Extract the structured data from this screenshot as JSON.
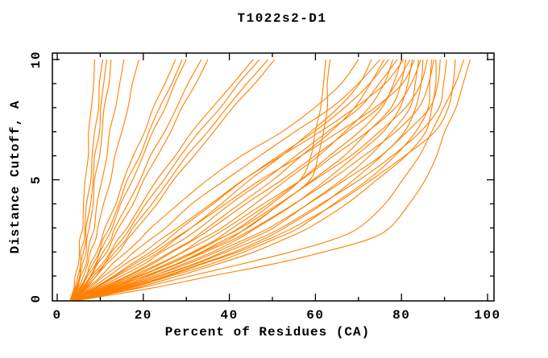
{
  "colors": {
    "curve": "#ff8000",
    "axis": "#000000",
    "background": "#ffffff"
  },
  "chart_data": {
    "type": "line",
    "title": "T1022s2-D1",
    "xlabel": "Percent of Residues (CA)",
    "ylabel": "Distance Cutoff, A",
    "xlim": [
      0,
      101.5
    ],
    "ylim": [
      0,
      10.3
    ],
    "grid": false,
    "legend": "none",
    "x_major_ticks": [
      0,
      20,
      40,
      60,
      80,
      100
    ],
    "x_minor_ticks": [
      10,
      30,
      50,
      70,
      90
    ],
    "y_major_ticks": [
      0,
      5,
      10
    ],
    "y_minor_ticks": [
      1,
      2,
      3,
      4,
      6,
      7,
      8,
      9
    ],
    "x_tick_labels": [
      "0",
      "20",
      "40",
      "60",
      "80",
      "100"
    ],
    "y_tick_labels": [
      "0",
      "5",
      "10"
    ],
    "series_color": "#ff8000",
    "y_levels": [
      0,
      0.5,
      1,
      1.5,
      2,
      2.5,
      3,
      4,
      5,
      6,
      7,
      8,
      9,
      10
    ],
    "series": [
      [
        3.0,
        3.9,
        4.4,
        4.8,
        5.1,
        5.4,
        5.7,
        6.2,
        6.6,
        7.0,
        7.5,
        7.9,
        8.3,
        8.7
      ],
      [
        3.0,
        4.1,
        4.8,
        5.3,
        5.7,
        6.1,
        6.4,
        7.0,
        7.6,
        8.2,
        8.8,
        9.4,
        10.0,
        10.6
      ],
      [
        3.1,
        4.3,
        5.0,
        5.6,
        6.1,
        6.5,
        6.9,
        7.6,
        8.3,
        8.9,
        9.6,
        10.2,
        10.9,
        11.5
      ],
      [
        3.1,
        4.5,
        5.3,
        6.0,
        6.5,
        7.0,
        7.4,
        8.2,
        8.9,
        9.7,
        10.4,
        11.1,
        11.8,
        12.5
      ],
      [
        3.3,
        4.7,
        5.7,
        6.5,
        7.2,
        7.8,
        8.4,
        9.4,
        10.4,
        11.4,
        12.4,
        13.4,
        14.5,
        15.5
      ],
      [
        3.3,
        4.9,
        6.0,
        7.0,
        7.9,
        8.7,
        9.5,
        10.9,
        12.2,
        13.6,
        15.0,
        16.3,
        17.7,
        19.0
      ],
      [
        3.5,
        5.2,
        6.6,
        7.9,
        9.1,
        10.2,
        11.3,
        13.4,
        15.5,
        17.8,
        20.1,
        22.5,
        25.0,
        27.5
      ],
      [
        3.5,
        5.4,
        6.9,
        8.3,
        9.6,
        10.8,
        12.0,
        14.3,
        16.5,
        19.0,
        21.4,
        23.9,
        26.4,
        29.0
      ],
      [
        3.6,
        5.6,
        7.2,
        8.7,
        10.1,
        11.4,
        12.6,
        15.0,
        17.4,
        19.9,
        22.4,
        24.9,
        27.4,
        30.0
      ],
      [
        3.6,
        5.8,
        7.5,
        9.2,
        10.8,
        12.2,
        13.6,
        16.4,
        19.1,
        21.9,
        24.8,
        27.7,
        30.6,
        33.5
      ],
      [
        3.7,
        6.0,
        7.8,
        9.6,
        11.3,
        12.9,
        14.4,
        17.4,
        20.3,
        23.3,
        26.2,
        29.2,
        32.1,
        35.0
      ],
      [
        3.7,
        6.2,
        8.2,
        10.3,
        12.3,
        14.2,
        16.0,
        19.7,
        23.3,
        27.2,
        31.5,
        36.0,
        40.7,
        45.5
      ],
      [
        3.8,
        6.4,
        8.5,
        10.8,
        12.9,
        14.9,
        16.9,
        20.8,
        24.6,
        28.7,
        33.1,
        37.7,
        42.3,
        47.0
      ],
      [
        3.8,
        6.6,
        8.8,
        11.2,
        13.5,
        15.7,
        17.8,
        21.9,
        26.0,
        30.3,
        34.8,
        39.5,
        44.2,
        49.0
      ],
      [
        3.9,
        6.8,
        9.1,
        11.7,
        14.1,
        16.4,
        18.6,
        23.0,
        27.3,
        31.7,
        36.3,
        41.0,
        45.7,
        50.5
      ],
      [
        4.0,
        11.0,
        19.0,
        26.0,
        32.0,
        37.5,
        42.0,
        50.0,
        56.5,
        58.8,
        60.2,
        61.1,
        61.8,
        62.4
      ],
      [
        4.2,
        12.0,
        20.5,
        28.0,
        34.0,
        39.5,
        44.0,
        52.0,
        58.5,
        60.8,
        61.9,
        62.6,
        63.0,
        63.4
      ],
      [
        3.8,
        7.0,
        10.0,
        13.0,
        16.0,
        19.0,
        22.0,
        28.0,
        35.0,
        43.0,
        52.0,
        60.0,
        66.0,
        70.0
      ],
      [
        4.0,
        9.0,
        14.0,
        19.0,
        23.5,
        27.5,
        31.0,
        38.0,
        45.0,
        52.0,
        59.0,
        65.5,
        70.0,
        73.0
      ],
      [
        3.9,
        7.5,
        11.0,
        14.5,
        18.0,
        21.5,
        25.0,
        31.5,
        39.0,
        47.0,
        55.5,
        63.5,
        70.0,
        75.0
      ],
      [
        4.1,
        10.0,
        16.0,
        21.5,
        26.5,
        31.0,
        35.0,
        42.5,
        50.0,
        57.0,
        63.5,
        69.0,
        73.0,
        76.0
      ],
      [
        4.0,
        8.5,
        13.0,
        17.5,
        21.5,
        25.5,
        29.0,
        36.0,
        43.5,
        51.5,
        59.5,
        67.0,
        72.5,
        77.0
      ],
      [
        4.2,
        11.0,
        17.5,
        23.5,
        29.0,
        33.5,
        38.0,
        46.0,
        53.5,
        60.5,
        67.0,
        72.5,
        75.8,
        78.0
      ],
      [
        4.0,
        9.5,
        15.0,
        20.0,
        24.5,
        29.0,
        33.0,
        40.5,
        48.0,
        55.5,
        63.0,
        70.0,
        75.0,
        79.0
      ],
      [
        4.3,
        12.0,
        19.0,
        25.5,
        31.5,
        36.5,
        41.0,
        49.0,
        56.5,
        63.5,
        70.0,
        75.5,
        78.3,
        80.0
      ],
      [
        3.9,
        8.0,
        12.0,
        16.0,
        20.0,
        24.0,
        28.0,
        35.5,
        43.5,
        52.0,
        61.0,
        69.5,
        76.0,
        80.5
      ],
      [
        4.4,
        13.0,
        20.5,
        27.5,
        33.5,
        39.0,
        44.0,
        52.0,
        59.5,
        66.5,
        72.5,
        77.5,
        79.8,
        81.0
      ],
      [
        4.1,
        10.5,
        16.5,
        22.0,
        27.0,
        31.5,
        36.0,
        44.0,
        52.0,
        60.0,
        67.5,
        74.5,
        79.0,
        82.0
      ],
      [
        4.5,
        14.0,
        22.0,
        29.5,
        36.0,
        41.5,
        46.5,
        55.0,
        62.5,
        69.5,
        75.5,
        79.8,
        81.5,
        82.5
      ],
      [
        4.0,
        8.8,
        13.5,
        18.0,
        22.5,
        27.0,
        31.0,
        39.0,
        47.5,
        56.5,
        65.5,
        74.0,
        80.0,
        83.0
      ],
      [
        4.6,
        15.0,
        23.5,
        31.5,
        38.5,
        44.5,
        50.0,
        58.5,
        66.0,
        72.5,
        78.0,
        81.8,
        83.2,
        84.0
      ],
      [
        4.2,
        11.5,
        18.0,
        24.0,
        29.5,
        34.5,
        39.5,
        48.0,
        56.5,
        64.5,
        72.0,
        78.5,
        82.5,
        84.5
      ],
      [
        4.7,
        16.0,
        25.0,
        33.5,
        41.0,
        47.5,
        53.0,
        61.5,
        69.0,
        75.5,
        80.5,
        83.5,
        84.5,
        85.0
      ],
      [
        4.3,
        12.5,
        19.5,
        26.0,
        32.0,
        37.5,
        42.5,
        51.5,
        60.0,
        68.0,
        75.0,
        81.0,
        84.3,
        86.0
      ],
      [
        4.8,
        17.0,
        26.5,
        35.5,
        43.5,
        50.0,
        56.0,
        64.5,
        72.0,
        78.5,
        83.5,
        86.0,
        86.7,
        87.0
      ],
      [
        4.4,
        13.5,
        21.0,
        28.0,
        34.5,
        40.5,
        46.0,
        55.0,
        63.5,
        71.5,
        78.5,
        84.0,
        86.5,
        87.5
      ],
      [
        5.0,
        18.0,
        28.0,
        37.5,
        45.5,
        52.5,
        58.5,
        67.0,
        74.5,
        81.0,
        85.5,
        87.3,
        87.8,
        88.0
      ],
      [
        4.5,
        14.5,
        22.5,
        30.0,
        37.0,
        43.5,
        49.0,
        58.5,
        67.0,
        75.0,
        81.5,
        86.5,
        88.3,
        89.0
      ],
      [
        4.6,
        15.5,
        24.0,
        32.0,
        39.5,
        46.0,
        52.0,
        61.5,
        70.0,
        78.0,
        84.5,
        88.5,
        90.0,
        90.5
      ],
      [
        4.7,
        16.5,
        25.5,
        34.0,
        42.0,
        48.5,
        55.0,
        64.5,
        73.0,
        81.0,
        87.5,
        91.0,
        92.1,
        92.5
      ],
      [
        5.0,
        19.0,
        31.0,
        43.0,
        54.0,
        64.0,
        70.0,
        76.0,
        80.5,
        84.0,
        87.0,
        90.0,
        92.3,
        94.5
      ],
      [
        5.2,
        22.0,
        36.0,
        50.0,
        62.0,
        72.0,
        77.0,
        82.0,
        85.5,
        88.0,
        90.3,
        92.5,
        94.3,
        96.0
      ]
    ]
  }
}
